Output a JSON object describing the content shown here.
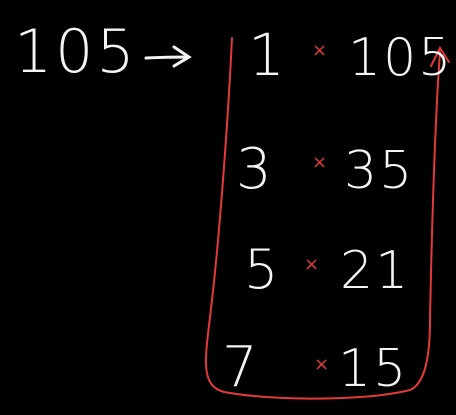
{
  "board": {
    "background": "#000000",
    "ink_color": "#f4f4f4",
    "accent_color": "#e23a3a"
  },
  "number": "105",
  "arrow_icon": "right-arrow-icon",
  "factor_pairs": [
    {
      "left": "1",
      "op": "×",
      "right": "105"
    },
    {
      "left": "3",
      "op": "×",
      "right": "35"
    },
    {
      "left": "5",
      "op": "×",
      "right": "21"
    },
    {
      "left": "7",
      "op": "×",
      "right": "15"
    }
  ]
}
